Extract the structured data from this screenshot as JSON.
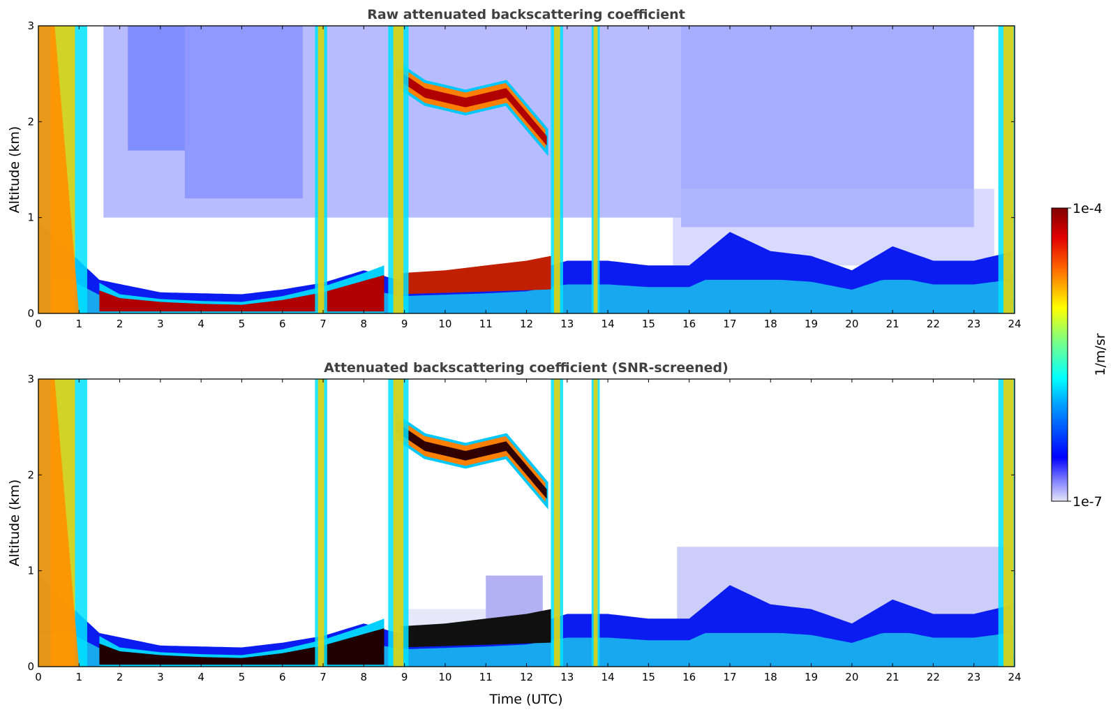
{
  "chart_data": [
    {
      "type": "heatmap",
      "title": "Raw attenuated backscattering coefficient",
      "xlabel": "",
      "ylabel": "Altitude (km)",
      "xlim": [
        0,
        24
      ],
      "ylim": [
        0,
        3
      ],
      "x_ticks": [
        "0",
        "1",
        "2",
        "3",
        "4",
        "5",
        "6",
        "7",
        "8",
        "9",
        "10",
        "11",
        "12",
        "13",
        "14",
        "15",
        "16",
        "17",
        "18",
        "19",
        "20",
        "21",
        "22",
        "23",
        "24"
      ],
      "y_ticks": [
        "0",
        "1",
        "2",
        "3"
      ],
      "screened": false,
      "features": {
        "surface_layer_top_km": [
          [
            0,
            0.95
          ],
          [
            1,
            0.55
          ],
          [
            1.5,
            0.35
          ],
          [
            3,
            0.22
          ],
          [
            5,
            0.2
          ],
          [
            6,
            0.25
          ],
          [
            7,
            0.32
          ],
          [
            8,
            0.45
          ],
          [
            9,
            0.33
          ],
          [
            11,
            0.38
          ],
          [
            12,
            0.42
          ],
          [
            13,
            0.55
          ],
          [
            14,
            0.55
          ],
          [
            15,
            0.5
          ],
          [
            16,
            0.5
          ],
          [
            17,
            0.85
          ],
          [
            18,
            0.65
          ],
          [
            19,
            0.6
          ],
          [
            20,
            0.45
          ],
          [
            21,
            0.7
          ],
          [
            22,
            0.55
          ],
          [
            23,
            0.55
          ],
          [
            24,
            0.65
          ]
        ],
        "elevated_cloud_layer": {
          "x_start": 8.8,
          "x_end": 12.5,
          "alt_km": [
            [
              8.8,
              2.5
            ],
            [
              9.5,
              2.3
            ],
            [
              10.5,
              2.2
            ],
            [
              11.5,
              2.3
            ],
            [
              12.5,
              1.8
            ]
          ]
        },
        "precipitation_columns": [
          [
            0,
            1.2
          ],
          [
            6.8,
            0.3
          ],
          [
            8.6,
            0.5
          ],
          [
            12.6,
            0.3
          ],
          [
            13.6,
            0.2
          ],
          [
            23.6,
            0.5
          ]
        ]
      }
    },
    {
      "type": "heatmap",
      "title": "Attenuated backscattering coefficient (SNR-screened)",
      "xlabel": "Time (UTC)",
      "ylabel": "Altitude (km)",
      "xlim": [
        0,
        24
      ],
      "ylim": [
        0,
        3
      ],
      "x_ticks": [
        "0",
        "1",
        "2",
        "3",
        "4",
        "5",
        "6",
        "7",
        "8",
        "9",
        "10",
        "11",
        "12",
        "13",
        "14",
        "15",
        "16",
        "17",
        "18",
        "19",
        "20",
        "21",
        "22",
        "23",
        "24"
      ],
      "y_ticks": [
        "0",
        "1",
        "2",
        "3"
      ],
      "screened": true
    }
  ],
  "colorbar": {
    "label": "1/m/sr",
    "min_label": "1e-7",
    "max_label": "1e-4",
    "colormap": "jet"
  }
}
